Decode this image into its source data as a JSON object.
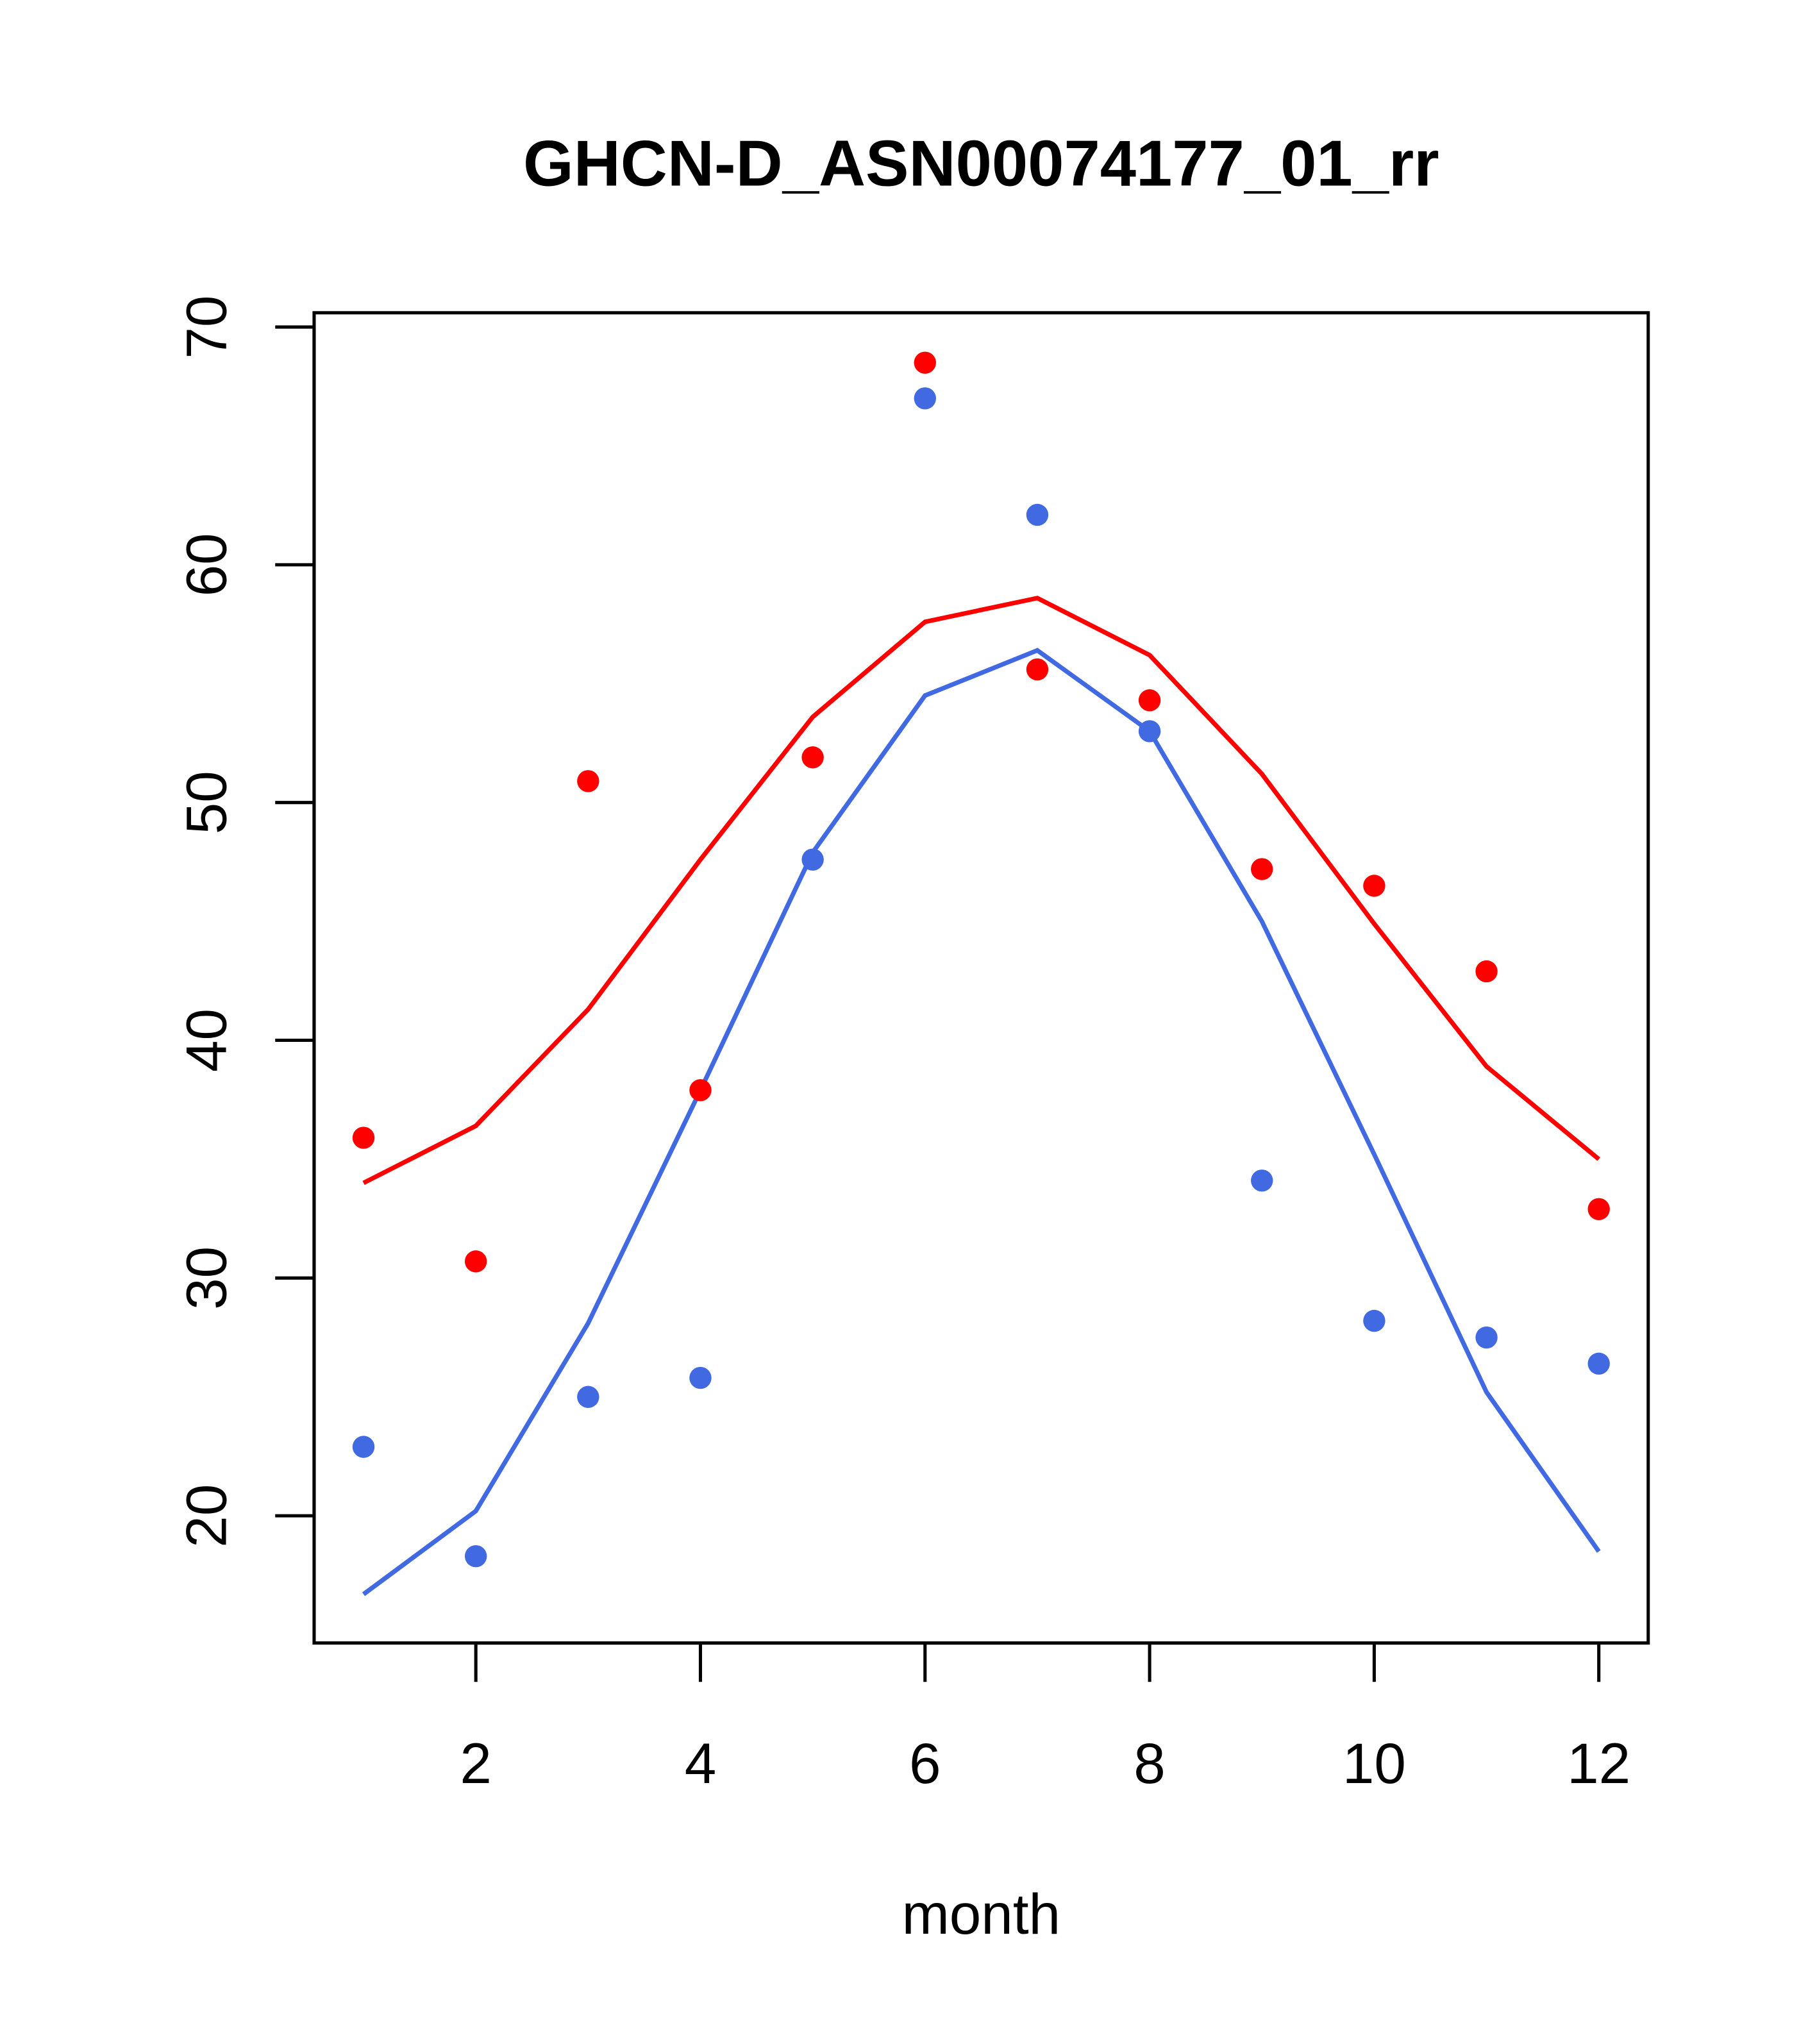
{
  "chart_data": {
    "type": "scatter",
    "title": "GHCN-D_ASN00074177_01_rr",
    "xlabel": "month",
    "ylabel": "",
    "xlim": [
      0.56,
      12.44
    ],
    "ylim": [
      14.65,
      70.6
    ],
    "x_ticks": [
      2,
      4,
      6,
      8,
      10,
      12
    ],
    "y_ticks": [
      20,
      30,
      40,
      50,
      60,
      70
    ],
    "grid": false,
    "x": [
      1,
      2,
      3,
      4,
      5,
      6,
      7,
      8,
      9,
      10,
      11,
      12
    ],
    "series": [
      {
        "name": "red points",
        "kind": "points",
        "color": "#FF0000",
        "values": [
          35.9,
          30.7,
          50.9,
          37.9,
          51.9,
          68.5,
          55.6,
          54.3,
          47.2,
          46.5,
          42.9,
          32.9
        ]
      },
      {
        "name": "blue points",
        "kind": "points",
        "color": "#4169E1",
        "values": [
          22.9,
          18.3,
          25.0,
          25.8,
          47.6,
          67.0,
          62.1,
          53.0,
          34.1,
          28.2,
          27.5,
          26.4
        ]
      },
      {
        "name": "red line",
        "kind": "line",
        "color": "#FF0000",
        "values": [
          34.0,
          36.4,
          41.3,
          47.6,
          53.6,
          57.6,
          58.6,
          56.2,
          51.2,
          44.9,
          38.9,
          35.0
        ]
      },
      {
        "name": "blue line",
        "kind": "line",
        "color": "#4169E1",
        "values": [
          16.7,
          20.2,
          28.1,
          37.9,
          47.9,
          54.5,
          56.4,
          53.0,
          45.0,
          35.2,
          25.2,
          18.5
        ]
      }
    ]
  }
}
